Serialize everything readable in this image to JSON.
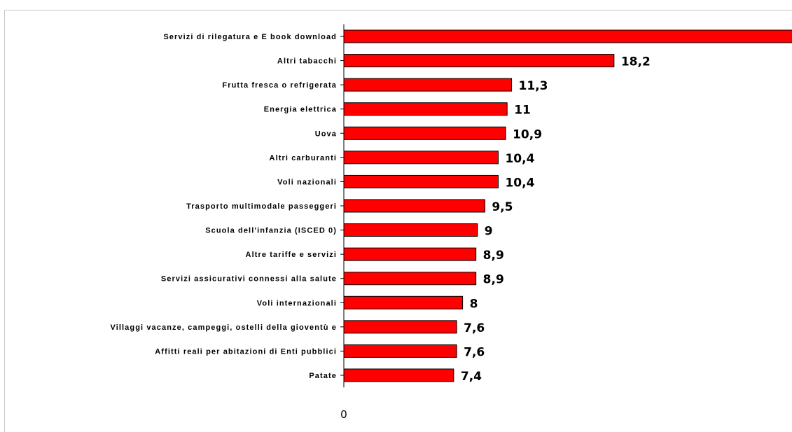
{
  "chart_data": {
    "type": "bar",
    "orientation": "horizontal",
    "bar_color": "#ff0000",
    "categories": [
      "Servizi di rilegatura e E book download",
      "Altri tabacchi",
      "Frutta fresca o refrigerata",
      "Energia elettrica",
      "Uova",
      "Altri carburanti",
      "Voli nazionali",
      "Trasporto multimodale passeggeri",
      "Scuola dell'infanzia (ISCED 0)",
      "Altre tariffe e servizi",
      "Servizi assicurativi connessi alla salute",
      "Voli internazionali",
      "Villaggi vacanze, campeggi, ostelli della gioventù e",
      "Affitti reali per abitazioni di Enti pubblici",
      "Patate"
    ],
    "values": [
      32,
      18.2,
      11.3,
      11,
      10.9,
      10.4,
      10.4,
      9.5,
      9,
      8.9,
      8.9,
      8,
      7.6,
      7.6,
      7.4
    ],
    "data_labels": [
      "",
      "18,2",
      "11,3",
      "11",
      "10,9",
      "10,4",
      "10,4",
      "9,5",
      "9",
      "8,9",
      "8,9",
      "8",
      "7,6",
      "7,6",
      "7,4"
    ],
    "xlim": [
      0,
      32
    ],
    "x_ticks": [
      "0",
      "32"
    ],
    "grid": false
  }
}
